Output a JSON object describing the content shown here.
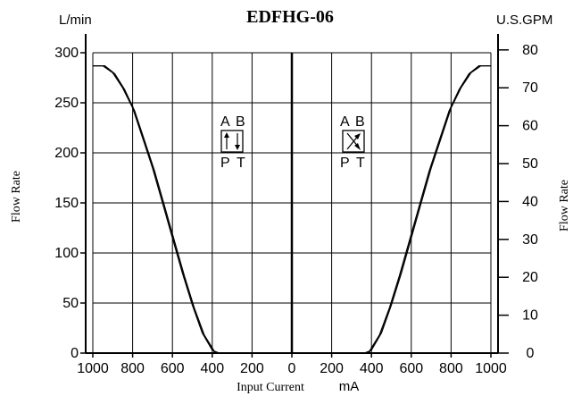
{
  "chart_data": {
    "type": "line",
    "title": "EDFHG-06",
    "left_unit": "L/min",
    "right_unit": "U.S.GPM",
    "ylabel_left": "Flow Rate",
    "ylabel_right": "Flow Rate",
    "xlabel": "Input Current",
    "xlabel_unit": "mA",
    "x_tick_labels": [
      "1000",
      "800",
      "600",
      "400",
      "200",
      "0",
      "200",
      "400",
      "600",
      "800",
      "1000"
    ],
    "y_left_ticks": [
      0,
      50,
      100,
      150,
      200,
      250,
      300
    ],
    "y_right_ticks": [
      0,
      10,
      20,
      30,
      40,
      50,
      60,
      70,
      80
    ],
    "xlim": [
      -1000,
      1000
    ],
    "ylim": [
      0,
      300
    ],
    "grid": true,
    "series": [
      {
        "x": [
          -1000,
          -950,
          -900,
          -850,
          -800,
          -750,
          -700,
          -650,
          -600,
          -550,
          -500,
          -450,
          -400,
          -380
        ],
        "y": [
          287,
          287,
          280,
          265,
          245,
          215,
          185,
          150,
          115,
          80,
          48,
          20,
          3,
          0
        ]
      },
      {
        "x": [
          -1000,
          -940,
          -890,
          -840,
          -790,
          -740,
          -690,
          -640,
          -590,
          -540,
          -490,
          -440,
          -390,
          -365
        ],
        "y": [
          287,
          287,
          279,
          263,
          242,
          212,
          182,
          147,
          112,
          77,
          45,
          18,
          2,
          0
        ]
      },
      {
        "x": [
          1000,
          950,
          900,
          850,
          800,
          750,
          700,
          650,
          600,
          550,
          500,
          450,
          400,
          380
        ],
        "y": [
          287,
          287,
          280,
          265,
          245,
          215,
          185,
          150,
          115,
          80,
          48,
          20,
          3,
          0
        ]
      },
      {
        "x": [
          1000,
          940,
          890,
          840,
          790,
          740,
          690,
          640,
          590,
          540,
          490,
          440,
          390,
          365
        ],
        "y": [
          287,
          287,
          279,
          263,
          242,
          212,
          182,
          147,
          112,
          77,
          45,
          18,
          2,
          0
        ]
      }
    ]
  },
  "symbols": {
    "left": {
      "a": "A",
      "b": "B",
      "p": "P",
      "t": "T"
    },
    "right": {
      "a": "A",
      "b": "B",
      "p": "P",
      "t": "T"
    }
  }
}
